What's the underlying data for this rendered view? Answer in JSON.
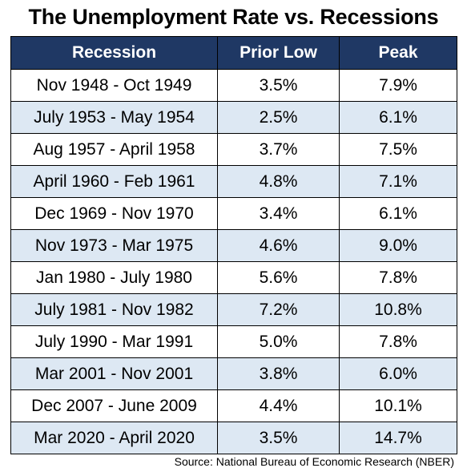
{
  "title": "The Unemployment Rate vs. Recessions",
  "colors": {
    "header_bg": "#1f3864",
    "header_text": "#ffffff",
    "alt_row_bg": "#dde8f3"
  },
  "source": "Source: National Bureau of Economic Research (NBER)",
  "chart_data": {
    "type": "table",
    "title": "The Unemployment Rate vs. Recessions",
    "columns": [
      "Recession",
      "Prior Low",
      "Peak"
    ],
    "rows": [
      [
        "Nov 1948 - Oct 1949",
        "3.5%",
        "7.9%"
      ],
      [
        "July 1953 - May 1954",
        "2.5%",
        "6.1%"
      ],
      [
        "Aug 1957 - April 1958",
        "3.7%",
        "7.5%"
      ],
      [
        "April 1960 - Feb 1961",
        "4.8%",
        "7.1%"
      ],
      [
        "Dec 1969 - Nov 1970",
        "3.4%",
        "6.1%"
      ],
      [
        "Nov 1973 - Mar 1975",
        "4.6%",
        "9.0%"
      ],
      [
        "Jan 1980 - July 1980",
        "5.6%",
        "7.8%"
      ],
      [
        "July 1981 - Nov 1982",
        "7.2%",
        "10.8%"
      ],
      [
        "July 1990 - Mar 1991",
        "5.0%",
        "7.8%"
      ],
      [
        "Mar 2001 - Nov 2001",
        "3.8%",
        "6.0%"
      ],
      [
        "Dec 2007 - June 2009",
        "4.4%",
        "10.1%"
      ],
      [
        "Mar 2020 - April 2020",
        "3.5%",
        "14.7%"
      ]
    ]
  }
}
